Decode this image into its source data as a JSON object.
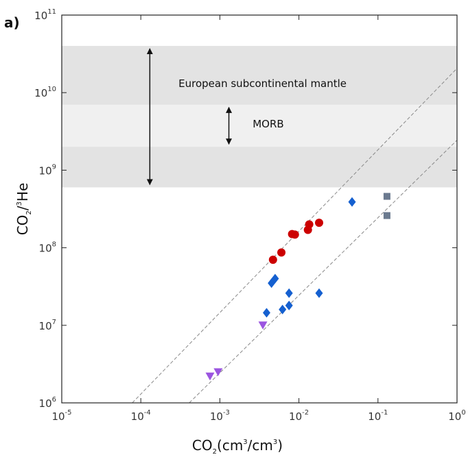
{
  "chart_data": {
    "type": "scatter",
    "panel_label": "a)",
    "xlabel": {
      "base": "CO",
      "sub": "2",
      "open": "(cm",
      "sup1": "3",
      "mid": "/cm",
      "sup2": "3",
      "close": ")"
    },
    "ylabel": {
      "base": "CO",
      "sub": "2",
      "slash": "/",
      "sup": "3",
      "tail": "He"
    },
    "x_scale": "log",
    "y_scale": "log",
    "xlim": [
      1e-05,
      1
    ],
    "ylim": [
      1000000,
      100000000000
    ],
    "x_ticks": [
      {
        "value": 1e-05,
        "base": "10",
        "exp": "-5"
      },
      {
        "value": 0.0001,
        "base": "10",
        "exp": "-4"
      },
      {
        "value": 0.001,
        "base": "10",
        "exp": "-3"
      },
      {
        "value": 0.01,
        "base": "10",
        "exp": "-2"
      },
      {
        "value": 0.1,
        "base": "10",
        "exp": "-1"
      },
      {
        "value": 1,
        "base": "10",
        "exp": "0"
      }
    ],
    "y_ticks": [
      {
        "value": 1000000,
        "base": "10",
        "exp": "6"
      },
      {
        "value": 10000000,
        "base": "10",
        "exp": "7"
      },
      {
        "value": 100000000,
        "base": "10",
        "exp": "8"
      },
      {
        "value": 1000000000,
        "base": "10",
        "exp": "9"
      },
      {
        "value": 10000000000,
        "base": "10",
        "exp": "10"
      },
      {
        "value": 100000000000,
        "base": "10",
        "exp": "11"
      }
    ],
    "grid": false,
    "bands": [
      {
        "from": 600000000,
        "to": 40000000000,
        "color": "#e3e3e3"
      },
      {
        "from": 2000000000,
        "to": 7000000000,
        "color": "#f0f0f0"
      }
    ],
    "ranges": [
      {
        "label": "European subcontinental mantle",
        "x": 0.00013,
        "y_min": 600000000,
        "y_max": 40000000000,
        "text_x": 0.0003,
        "text_y": 13000000000
      },
      {
        "label": "MORB",
        "x": 0.0013,
        "y_min": 2000000000,
        "y_max": 7000000000,
        "text_x": 0.0026,
        "text_y": 3900000000
      }
    ],
    "reference_lines": [
      {
        "intercept_x": 7.8e-05,
        "intercept_y": 1000000,
        "slope": 1.05,
        "color": "#888888"
      },
      {
        "intercept_x": 0.00041,
        "intercept_y": 1000000,
        "slope": 1.0,
        "color": "#888888"
      }
    ],
    "series": [
      {
        "marker": "circle",
        "color": "#cc0000",
        "points": [
          [
            0.0047,
            70000000
          ],
          [
            0.006,
            87000000
          ],
          [
            0.0082,
            150000000
          ],
          [
            0.0089,
            148000000
          ],
          [
            0.013,
            170000000
          ],
          [
            0.0135,
            200000000
          ],
          [
            0.018,
            210000000
          ]
        ]
      },
      {
        "marker": "diamond",
        "color": "#1560d0",
        "points": [
          [
            0.0039,
            14500000
          ],
          [
            0.0045,
            35000000
          ],
          [
            0.005,
            40000000
          ],
          [
            0.0062,
            16000000
          ],
          [
            0.0075,
            18000000
          ],
          [
            0.0075,
            26000000
          ],
          [
            0.018,
            26000000
          ],
          [
            0.047,
            390000000
          ]
        ]
      },
      {
        "marker": "square",
        "color": "#6b7a8f",
        "points": [
          [
            0.13,
            460000000
          ],
          [
            0.13,
            260000000
          ]
        ]
      },
      {
        "marker": "triangle",
        "color": "#9b55e0",
        "points": [
          [
            0.00075,
            2200000
          ],
          [
            0.00095,
            2500000
          ],
          [
            0.0035,
            10000000
          ]
        ]
      }
    ]
  }
}
